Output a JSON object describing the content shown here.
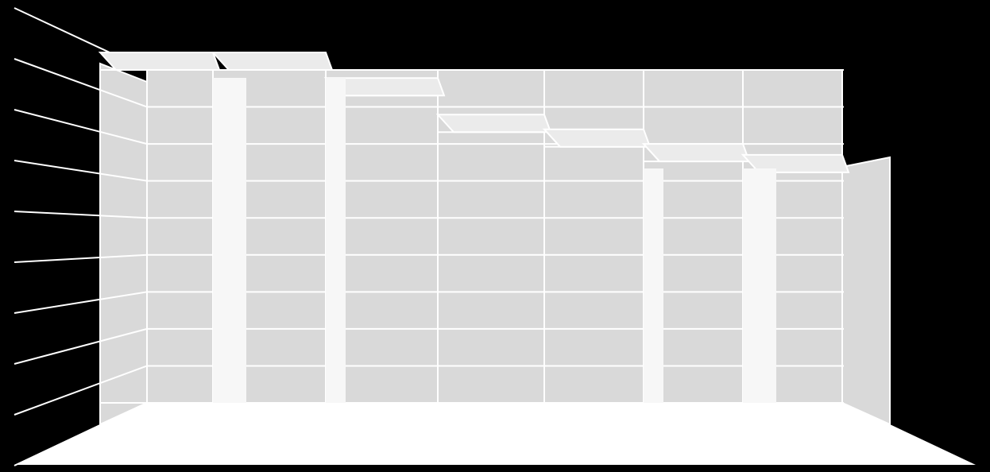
{
  "chart_data": {
    "type": "bar",
    "style": "3d",
    "categories": [
      "",
      "",
      "",
      "",
      "",
      "",
      ""
    ],
    "values": [
      9.1,
      9.1,
      8.4,
      7.4,
      7.0,
      6.6,
      6.3
    ],
    "ylim": [
      0,
      9.1
    ],
    "grid": true,
    "colors": {
      "background": "#000000",
      "wall": "#d9d9d9",
      "floor": "#ffffff",
      "bar_front": "#f7f7f7",
      "bar_top": "#ebebeb",
      "bar_side": "#e8e8e8",
      "gridline": "#ffffff"
    }
  }
}
